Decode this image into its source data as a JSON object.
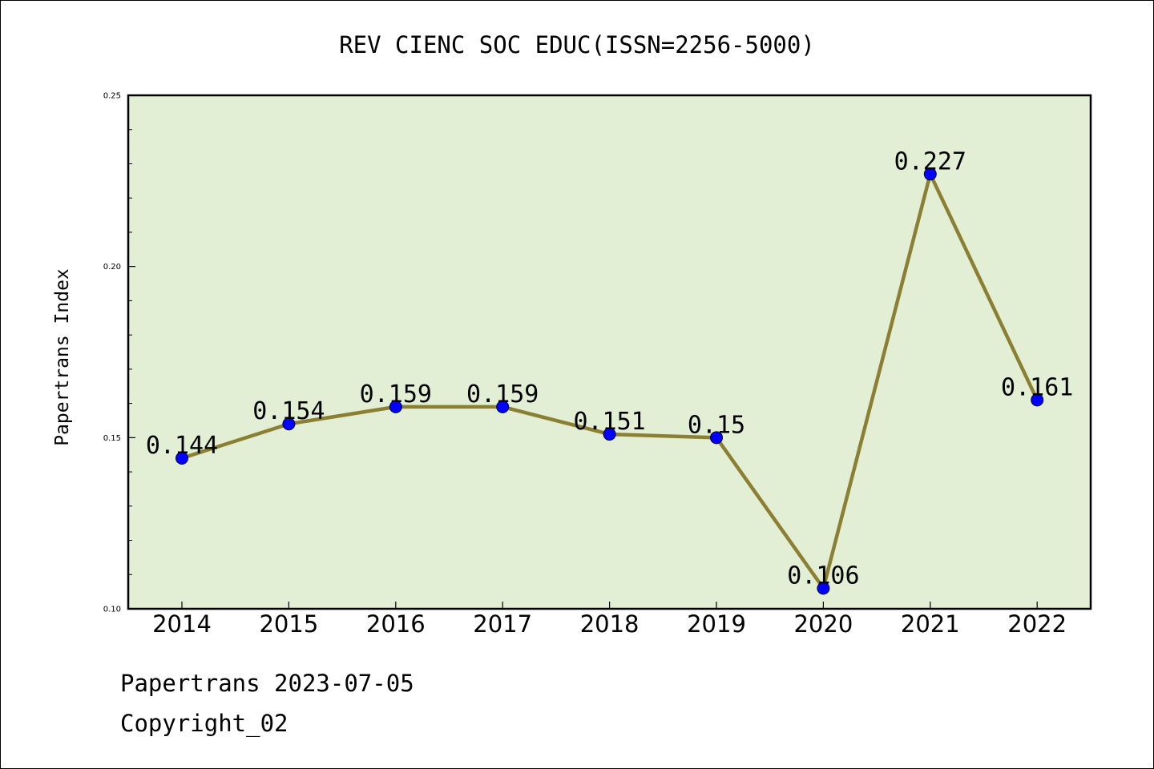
{
  "chart_data": {
    "type": "line",
    "title": "REV CIENC SOC EDUC(ISSN=2256-5000)",
    "xlabel": "",
    "ylabel": "Papertrans Index",
    "categories": [
      "2014",
      "2015",
      "2016",
      "2017",
      "2018",
      "2019",
      "2020",
      "2021",
      "2022"
    ],
    "values": [
      0.144,
      0.154,
      0.159,
      0.159,
      0.151,
      0.15,
      0.106,
      0.227,
      0.161
    ],
    "data_labels": [
      "0.144",
      "0.154",
      "0.159",
      "0.159",
      "0.151",
      "0.15",
      "0.106",
      "0.227",
      "0.161"
    ],
    "ylim": [
      0.1,
      0.25
    ],
    "yticks": [
      0.1,
      0.15,
      0.2,
      0.25
    ],
    "ytick_labels": [
      "0.10",
      "0.15",
      "0.20",
      "0.25"
    ],
    "grid": false,
    "colors": {
      "plot_background": "#e2efd4",
      "line": "#8b7f34",
      "marker": "#0000ff"
    }
  },
  "footer": {
    "line1": "Papertrans 2023-07-05",
    "line2": "Copyright_02"
  }
}
